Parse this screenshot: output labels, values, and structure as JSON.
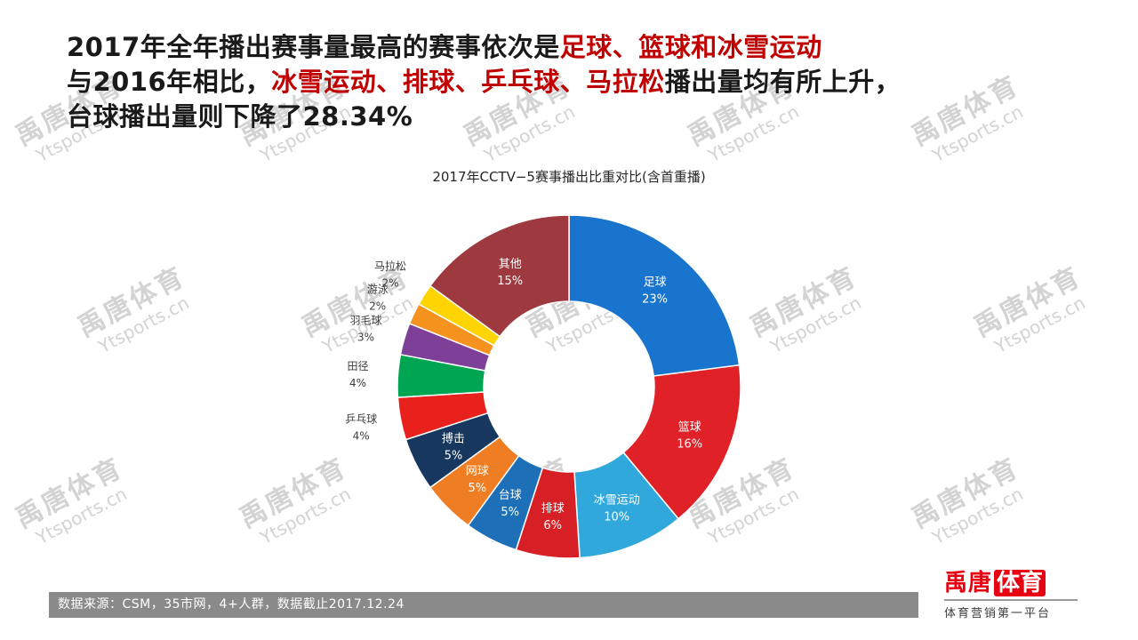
{
  "heading": {
    "lines": [
      {
        "segments": [
          {
            "text": "2017年全年播出赛事量最高的赛事依次是",
            "color": "#1a1a1a"
          },
          {
            "text": "足球、篮球和冰雪运动",
            "color": "#c00000"
          }
        ]
      },
      {
        "segments": [
          {
            "text": "与2016年相比，",
            "color": "#1a1a1a"
          },
          {
            "text": "冰雪运动、排球、乒乓球、马拉松",
            "color": "#c00000"
          },
          {
            "text": "播出量均有所上升，",
            "color": "#1a1a1a"
          }
        ]
      },
      {
        "segments": [
          {
            "text": "台球播出量则下降了28.34%",
            "color": "#1a1a1a"
          }
        ]
      }
    ]
  },
  "chart_data": {
    "type": "pie",
    "donut": true,
    "title": "2017年CCTV−5赛事播出比重对比(含首重播)",
    "legend_position": "none",
    "slices": [
      {
        "name": "足球",
        "value": 23,
        "color": "#1874cd",
        "label_inside": true
      },
      {
        "name": "篮球",
        "value": 16,
        "color": "#e02127",
        "label_inside": true
      },
      {
        "name": "冰雪运动",
        "value": 10,
        "color": "#31a8dc",
        "label_inside": true
      },
      {
        "name": "排球",
        "value": 6,
        "color": "#d71f26",
        "label_inside": true
      },
      {
        "name": "台球",
        "value": 5,
        "color": "#1d70b8",
        "label_inside": true
      },
      {
        "name": "网球",
        "value": 5,
        "color": "#ee7d23",
        "label_inside": true
      },
      {
        "name": "搏击",
        "value": 5,
        "color": "#17375e",
        "label_inside": true
      },
      {
        "name": "乒乓球",
        "value": 4,
        "color": "#e8211d",
        "label_inside": false
      },
      {
        "name": "田径",
        "value": 4,
        "color": "#00a551",
        "label_inside": false
      },
      {
        "name": "羽毛球",
        "value": 3,
        "color": "#7d3f98",
        "label_inside": false
      },
      {
        "name": "游泳",
        "value": 2,
        "color": "#f6921e",
        "label_inside": false
      },
      {
        "name": "马拉松",
        "value": 2,
        "color": "#ffd400",
        "label_inside": false
      },
      {
        "name": "其他",
        "value": 15,
        "color": "#9e3a3f",
        "label_inside": true
      }
    ]
  },
  "footer": {
    "source": "数据来源：CSM，35市网，4+人群，数据截止2017.12.24",
    "logo_part1": "禹唐",
    "logo_part2": "体育",
    "tagline": "体育营销第一平台"
  },
  "watermark": {
    "line1": "禹唐体育",
    "line2": "Ytsports.cn"
  }
}
